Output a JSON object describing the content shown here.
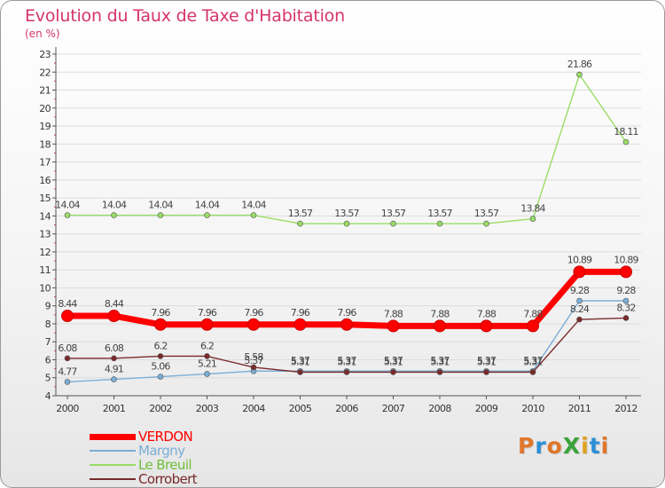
{
  "header": {
    "title": "Evolution du Taux de Taxe d'Habitation",
    "unit": "(en %)"
  },
  "logo": {
    "text": "ProXiti",
    "colors": [
      "#e0762a",
      "#2a8fd6",
      "#e0762a",
      "#3aa33a",
      "#e0a020",
      "#2a8fd6",
      "#e0762a"
    ]
  },
  "chart_data": {
    "type": "line",
    "title": "Evolution du Taux de Taxe d'Habitation",
    "ylabel": "(en %)",
    "xlabel": "",
    "ylim": [
      4,
      23
    ],
    "yticks": [
      4,
      5,
      6,
      7,
      8,
      9,
      10,
      11,
      12,
      13,
      14,
      15,
      16,
      17,
      18,
      19,
      20,
      21,
      22,
      23
    ],
    "x": [
      "2000",
      "2001",
      "2002",
      "2003",
      "2004",
      "2005",
      "2006",
      "2007",
      "2008",
      "2009",
      "2010",
      "2011",
      "2012"
    ],
    "grid": "horizontal",
    "legend_position": "bottom-left",
    "series": [
      {
        "name": "VERDON",
        "color": "#ff0000",
        "values": [
          8.44,
          8.44,
          7.96,
          7.96,
          7.96,
          7.96,
          7.96,
          7.88,
          7.88,
          7.88,
          7.88,
          10.89,
          10.89
        ],
        "labels": [
          "8.44",
          "8.44",
          "7.96",
          "7.96",
          "7.96",
          "7.96",
          "7.96",
          "7.88",
          "7.88",
          "7.88",
          "7.88",
          "10.89",
          "10.89"
        ]
      },
      {
        "name": "Margny",
        "color": "#7aaed6",
        "values": [
          4.77,
          4.91,
          5.06,
          5.21,
          5.37,
          5.37,
          5.37,
          5.37,
          5.37,
          5.37,
          5.37,
          9.28,
          9.28
        ],
        "labels": [
          "4.77",
          "4.91",
          "5.06",
          "5.21",
          "5.37",
          "5.37",
          "5.37",
          "5.37",
          "5.37",
          "5.37",
          "5.37",
          "9.28",
          "9.28"
        ]
      },
      {
        "name": "Le Breuil",
        "color": "#99dd66",
        "values": [
          14.04,
          14.04,
          14.04,
          14.04,
          14.04,
          13.57,
          13.57,
          13.57,
          13.57,
          13.57,
          13.84,
          21.86,
          18.11
        ],
        "labels": [
          "14.04",
          "14.04",
          "14.04",
          "14.04",
          "14.04",
          "13.57",
          "13.57",
          "13.57",
          "13.57",
          "13.57",
          "13.84",
          "21.86",
          "18.11"
        ]
      },
      {
        "name": "Corrobert",
        "color": "#7a2a2a",
        "values": [
          6.08,
          6.08,
          6.2,
          6.2,
          5.58,
          5.31,
          5.31,
          5.31,
          5.31,
          5.31,
          5.31,
          8.24,
          8.32
        ],
        "labels": [
          "6.08",
          "6.08",
          "6.2",
          "6.2",
          "5.58",
          "5.31",
          "5.31",
          "5.31",
          "5.31",
          "5.31",
          "5.31",
          "8.24",
          "8.32"
        ]
      }
    ]
  }
}
